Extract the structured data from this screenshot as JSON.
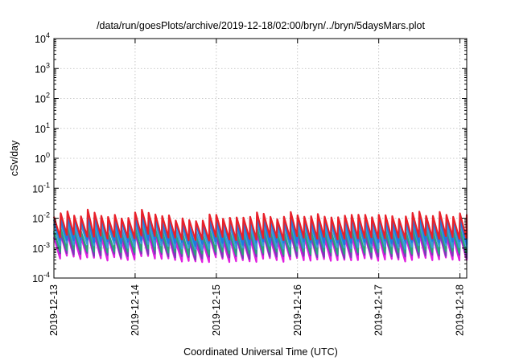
{
  "chart_data": {
    "type": "line",
    "title": "/data/run/goesPlots/archive/2019-12-18/02:00/bryn/../bryn/5daysMars.plot",
    "xlabel": "Coordinated Universal Time (UTC)",
    "ylabel": "cSv/day",
    "y_scale": "log",
    "ylim": [
      0.0001,
      10000
    ],
    "y_ticks": [
      {
        "value": 0.0001,
        "base": "10",
        "exp": "-4"
      },
      {
        "value": 0.001,
        "base": "10",
        "exp": "-3"
      },
      {
        "value": 0.01,
        "base": "10",
        "exp": "-2"
      },
      {
        "value": 0.1,
        "base": "10",
        "exp": "-1"
      },
      {
        "value": 1,
        "base": "10",
        "exp": "0"
      },
      {
        "value": 10,
        "base": "10",
        "exp": "1"
      },
      {
        "value": 100,
        "base": "10",
        "exp": "2"
      },
      {
        "value": 1000,
        "base": "10",
        "exp": "3"
      },
      {
        "value": 10000,
        "base": "10",
        "exp": "4"
      }
    ],
    "xlim": [
      "2019-12-13T00:00",
      "2019-12-18T02:00"
    ],
    "x_ticks": [
      "2019-12-13",
      "2019-12-14",
      "2019-12-15",
      "2019-12-16",
      "2019-12-17",
      "2019-12-18"
    ],
    "grid": true,
    "period_hours": 2,
    "series_colors": [
      "#e8202a",
      "#1e7be0",
      "#3b9ad8",
      "#2aa37a",
      "#7a3bb8",
      "#e01ee0"
    ],
    "series": [
      {
        "color": "#e8202a",
        "x": [
          "2019-12-13T00:00",
          "2019-12-13T02:00",
          "2019-12-13T04:00",
          "2019-12-13T06:00",
          "2019-12-13T08:00",
          "2019-12-13T10:00",
          "2019-12-13T12:00",
          "2019-12-13T14:00",
          "2019-12-13T16:00",
          "2019-12-13T18:00",
          "2019-12-13T20:00",
          "2019-12-13T22:00",
          "2019-12-14T00:00",
          "2019-12-14T02:00",
          "2019-12-14T04:00",
          "2019-12-14T06:00",
          "2019-12-14T08:00",
          "2019-12-14T10:00",
          "2019-12-14T12:00",
          "2019-12-14T14:00",
          "2019-12-14T16:00",
          "2019-12-14T18:00",
          "2019-12-14T20:00",
          "2019-12-14T22:00",
          "2019-12-15T00:00",
          "2019-12-15T02:00",
          "2019-12-15T04:00",
          "2019-12-15T06:00",
          "2019-12-15T08:00",
          "2019-12-15T10:00",
          "2019-12-15T12:00",
          "2019-12-15T14:00",
          "2019-12-15T16:00",
          "2019-12-15T18:00",
          "2019-12-15T20:00",
          "2019-12-15T22:00",
          "2019-12-16T00:00",
          "2019-12-16T02:00",
          "2019-12-16T04:00",
          "2019-12-16T06:00",
          "2019-12-16T08:00",
          "2019-12-16T10:00",
          "2019-12-16T12:00",
          "2019-12-16T14:00",
          "2019-12-16T16:00",
          "2019-12-16T18:00",
          "2019-12-16T20:00",
          "2019-12-16T22:00",
          "2019-12-17T00:00",
          "2019-12-17T02:00",
          "2019-12-17T04:00",
          "2019-12-17T06:00",
          "2019-12-17T08:00",
          "2019-12-17T10:00",
          "2019-12-17T12:00",
          "2019-12-17T14:00",
          "2019-12-17T16:00",
          "2019-12-17T18:00",
          "2019-12-17T20:00",
          "2019-12-17T22:00",
          "2019-12-18T00:00",
          "2019-12-18T02:00"
        ],
        "peaks": [
          0.012,
          0.014,
          0.016,
          0.013,
          0.012,
          0.018,
          0.015,
          0.013,
          0.011,
          0.012,
          0.01,
          0.011,
          0.015,
          0.018,
          0.016,
          0.014,
          0.011,
          0.012,
          0.009,
          0.01,
          0.008,
          0.008,
          0.009,
          0.013,
          0.012,
          0.01,
          0.011,
          0.01,
          0.01,
          0.012,
          0.016,
          0.013,
          0.011,
          0.01,
          0.011,
          0.015,
          0.013,
          0.012,
          0.011,
          0.013,
          0.012,
          0.011,
          0.01,
          0.012,
          0.014,
          0.013,
          0.012,
          0.011,
          0.014,
          0.012,
          0.011,
          0.01,
          0.012,
          0.014,
          0.016,
          0.013,
          0.012,
          0.015,
          0.013,
          0.012,
          0.014,
          0.012
        ],
        "troughs": [
          0.0045,
          0.005,
          0.0048,
          0.0045,
          0.0047,
          0.0042,
          0.0044,
          0.004,
          0.0046,
          0.0039,
          0.004,
          0.0042,
          0.0048,
          0.005,
          0.0046,
          0.0043,
          0.004,
          0.0038,
          0.0037,
          0.0035,
          0.0032,
          0.0034,
          0.0035,
          0.0045,
          0.004,
          0.0035,
          0.0036,
          0.0035,
          0.0034,
          0.0036,
          0.0042,
          0.0041,
          0.0039,
          0.0036,
          0.0038,
          0.0042,
          0.004,
          0.0038,
          0.0037,
          0.004,
          0.0039,
          0.0038,
          0.0036,
          0.0038,
          0.0041,
          0.0042,
          0.0039,
          0.0038,
          0.0042,
          0.0039,
          0.0038,
          0.0037,
          0.0039,
          0.0042,
          0.0045,
          0.0041,
          0.0039,
          0.0043,
          0.0041,
          0.004,
          0.0042,
          0.0035
        ]
      },
      {
        "color": "#1e7be0",
        "scale": 0.72
      },
      {
        "color": "#3b9ad8",
        "scale": 0.5
      },
      {
        "color": "#2aa37a",
        "scale": 0.33
      },
      {
        "color": "#7a3bb8",
        "scale": 0.25
      },
      {
        "color": "#e01ee0",
        "scale": 0.19
      }
    ]
  }
}
